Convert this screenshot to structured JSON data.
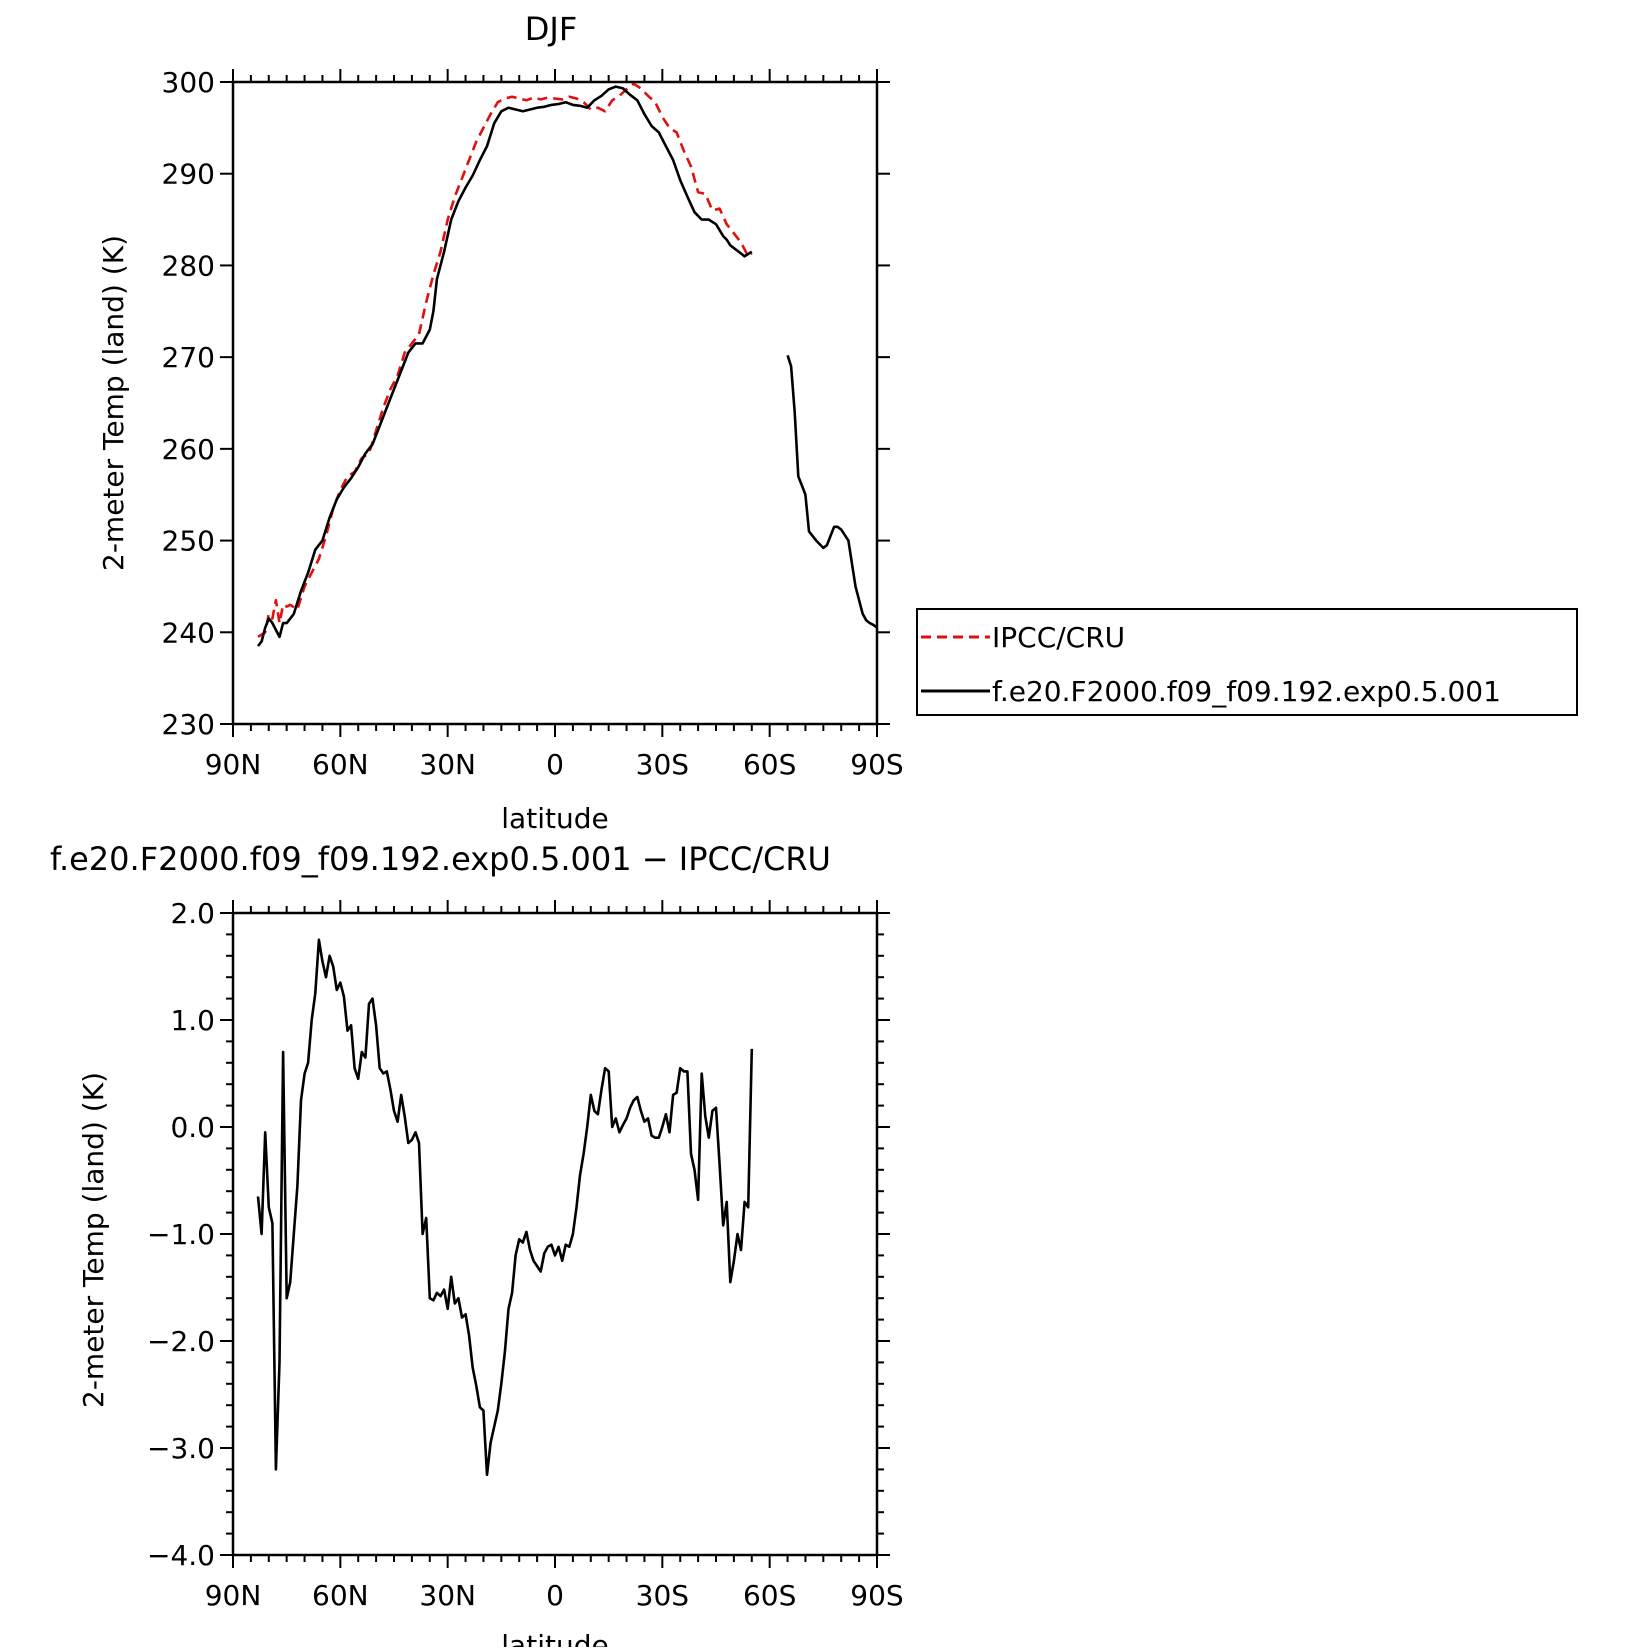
{
  "chart_data": [
    {
      "type": "line",
      "title": "DJF",
      "xlabel": "latitude",
      "ylabel": "2-meter Temp (land) (K)",
      "xlim": [
        -90,
        90
      ],
      "ylim": [
        230,
        300
      ],
      "x_ticks": [
        -90,
        -60,
        -30,
        0,
        30,
        60,
        90
      ],
      "x_tick_labels": [
        "90N",
        "60N",
        "30N",
        "0",
        "30S",
        "60S",
        "90S"
      ],
      "y_ticks": [
        230,
        240,
        250,
        260,
        270,
        280,
        290,
        300
      ],
      "y_tick_labels": [
        "230",
        "240",
        "250",
        "260",
        "270",
        "280",
        "290",
        "300"
      ],
      "legend_position": "right",
      "series": [
        {
          "name": "IPCC/CRU",
          "color": "#e01010",
          "dash": "dashed",
          "x": [
            -83,
            -81,
            -80,
            -79,
            -78,
            -77,
            -76,
            -75,
            -74,
            -72,
            -70,
            -68,
            -66,
            -64,
            -62,
            -60,
            -58,
            -56,
            -54,
            -52,
            -50,
            -48,
            -46,
            -44,
            -42,
            -40,
            -38,
            -36,
            -34,
            -32,
            -30,
            -28,
            -26,
            -24,
            -22,
            -20,
            -18,
            -16,
            -14,
            -12,
            -10,
            -8,
            -6,
            -4,
            -2,
            0,
            2,
            4,
            6,
            8,
            10,
            12,
            14,
            16,
            18,
            20,
            22,
            24,
            26,
            28,
            30,
            32,
            34,
            36,
            38,
            40,
            42,
            44,
            46,
            48,
            50,
            52,
            54,
            55
          ],
          "y": [
            239.5,
            240,
            242,
            241.5,
            243.5,
            241,
            243,
            242.8,
            243,
            242.5,
            245,
            246.5,
            248,
            250.5,
            253.5,
            255.5,
            257,
            257.5,
            259,
            259.5,
            262,
            264.5,
            266.5,
            268,
            270.5,
            271.5,
            272.5,
            276,
            279,
            281.5,
            285,
            287.5,
            289.5,
            291.5,
            293.5,
            295,
            296.5,
            297.8,
            298.2,
            298.4,
            298.2,
            298,
            298.3,
            298.1,
            298.3,
            298.2,
            298.1,
            298.4,
            298.2,
            297.8,
            297,
            297.2,
            296.8,
            298,
            298.5,
            299.2,
            299.8,
            299.3,
            298.5,
            297.8,
            296.2,
            295,
            294.5,
            292.5,
            290.8,
            288,
            287.8,
            286,
            286.2,
            284.5,
            283.5,
            282.5,
            281,
            281.3
          ]
        },
        {
          "name": "f.e20.F2000.f09_f09.192.exp0.5.001",
          "color": "#000000",
          "dash": "solid",
          "x": [
            -83,
            -82,
            -81,
            -80,
            -79,
            -77,
            -76,
            -75,
            -73,
            -71,
            -69,
            -67,
            -65,
            -63,
            -61,
            -59,
            -57,
            -55,
            -53,
            -51,
            -49,
            -47,
            -45,
            -43,
            -41,
            -39,
            -37,
            -35,
            -34,
            -33,
            -31,
            -29,
            -27,
            -25,
            -23,
            -21,
            -19,
            -17,
            -15,
            -13,
            -11,
            -9,
            -7,
            -5,
            -3,
            -1,
            1,
            3,
            5,
            7,
            9,
            11,
            13,
            15,
            17,
            19,
            21,
            23,
            25,
            27,
            29,
            31,
            33,
            35,
            37,
            39,
            41,
            43,
            45,
            47,
            48,
            49,
            51,
            53,
            55,
            null,
            65,
            66,
            67,
            68,
            69,
            70,
            71,
            73,
            75,
            76,
            77,
            78,
            79,
            80,
            82,
            84,
            86,
            87,
            88,
            89,
            90
          ],
          "y": [
            238.5,
            239,
            240.5,
            241.5,
            241,
            239.5,
            241,
            241,
            242,
            244.5,
            246.5,
            249,
            250,
            252.5,
            254.5,
            255.8,
            256.8,
            258,
            259.5,
            260.5,
            262.5,
            264.5,
            266.5,
            268.5,
            270.5,
            271.5,
            271.5,
            273,
            275,
            278.5,
            281.5,
            285,
            287,
            288.5,
            289.8,
            291.5,
            293,
            295.5,
            296.8,
            297.2,
            297,
            296.8,
            297,
            297.2,
            297.3,
            297.5,
            297.6,
            297.8,
            297.5,
            297.4,
            297.2,
            298,
            298.5,
            299.2,
            299.5,
            299.3,
            298.6,
            298,
            296.5,
            295.2,
            294.5,
            293,
            291.5,
            289.3,
            287.5,
            285.8,
            285,
            285,
            284.5,
            283.2,
            282.8,
            282.2,
            281.6,
            281,
            281.5,
            null,
            270.2,
            269,
            264,
            257,
            256,
            255,
            251,
            250,
            249.2,
            249.5,
            250.5,
            251.5,
            251.5,
            251.2,
            250,
            245,
            242,
            241.3,
            241,
            240.8,
            240.5
          ]
        }
      ]
    },
    {
      "type": "line",
      "title": "f.e20.F2000.f09_f09.192.exp0.5.001 − IPCC/CRU",
      "xlabel": "latitude",
      "ylabel": "2-meter Temp (land) (K)",
      "xlim": [
        -90,
        90
      ],
      "ylim": [
        -4.0,
        2.0
      ],
      "x_ticks": [
        -90,
        -60,
        -30,
        0,
        30,
        60,
        90
      ],
      "x_tick_labels": [
        "90N",
        "60N",
        "30N",
        "0",
        "30S",
        "60S",
        "90S"
      ],
      "y_ticks": [
        -4,
        -3,
        -2,
        -1,
        0,
        1,
        2
      ],
      "y_tick_labels": [
        "−4.0",
        "−3.0",
        "−2.0",
        "−1.0",
        "0.0",
        "1.0",
        "2.0"
      ],
      "series": [
        {
          "color": "#000000",
          "dash": "solid",
          "x": [
            -83,
            -82,
            -81,
            -80,
            -79,
            -78,
            -77,
            -76,
            -75,
            -74,
            -73,
            -72,
            -71,
            -70,
            -69,
            -68,
            -67,
            -66,
            -65,
            -64,
            -63,
            -62,
            -61,
            -60,
            -59,
            -58,
            -57,
            -56,
            -55,
            -54,
            -53,
            -52,
            -51,
            -50,
            -49,
            -48,
            -47,
            -46,
            -45,
            -44,
            -43,
            -42,
            -41,
            -40,
            -39,
            -38,
            -37,
            -36,
            -35,
            -34,
            -33,
            -32,
            -31,
            -30,
            -29,
            -28,
            -27,
            -26,
            -25,
            -24,
            -23,
            -22,
            -21,
            -20,
            -19,
            -18,
            -17,
            -16,
            -15,
            -14,
            -13,
            -12,
            -11,
            -10,
            -9,
            -8,
            -7,
            -6,
            -5,
            -4,
            -3,
            -2,
            -1,
            0,
            1,
            2,
            3,
            4,
            5,
            6,
            7,
            8,
            9,
            10,
            11,
            12,
            13,
            14,
            15,
            16,
            17,
            18,
            19,
            20,
            21,
            22,
            23,
            24,
            25,
            26,
            27,
            28,
            29,
            30,
            31,
            32,
            33,
            34,
            35,
            36,
            37,
            38,
            39,
            40,
            41,
            42,
            43,
            44,
            45,
            46,
            47,
            48,
            49,
            50,
            51,
            52,
            53,
            54,
            55
          ],
          "y": [
            -0.65,
            -1.0,
            -0.05,
            -0.75,
            -0.9,
            -3.2,
            -2.2,
            0.7,
            -1.6,
            -1.45,
            -1.0,
            -0.55,
            0.25,
            0.5,
            0.6,
            1.0,
            1.25,
            1.75,
            1.55,
            1.4,
            1.6,
            1.5,
            1.28,
            1.35,
            1.22,
            0.9,
            0.95,
            0.55,
            0.45,
            0.7,
            0.65,
            1.15,
            1.2,
            0.95,
            0.55,
            0.5,
            0.52,
            0.35,
            0.15,
            0.05,
            0.3,
            0.1,
            -0.15,
            -0.12,
            -0.05,
            -0.15,
            -1.0,
            -0.85,
            -1.6,
            -1.62,
            -1.55,
            -1.58,
            -1.52,
            -1.7,
            -1.4,
            -1.65,
            -1.6,
            -1.78,
            -1.75,
            -1.95,
            -2.25,
            -2.42,
            -2.62,
            -2.65,
            -3.25,
            -2.95,
            -2.8,
            -2.65,
            -2.4,
            -2.1,
            -1.7,
            -1.55,
            -1.2,
            -1.05,
            -1.08,
            -0.98,
            -1.15,
            -1.25,
            -1.3,
            -1.35,
            -1.18,
            -1.12,
            -1.1,
            -1.2,
            -1.12,
            -1.25,
            -1.1,
            -1.12,
            -1.0,
            -0.75,
            -0.45,
            -0.25,
            0.0,
            0.3,
            0.15,
            0.12,
            0.35,
            0.55,
            0.52,
            0.0,
            0.08,
            -0.05,
            0.02,
            0.08,
            0.18,
            0.25,
            0.28,
            0.15,
            0.05,
            0.08,
            -0.08,
            -0.1,
            -0.1,
            0.0,
            0.12,
            -0.05,
            0.3,
            0.32,
            0.55,
            0.52,
            0.52,
            -0.25,
            -0.4,
            -0.68,
            0.5,
            0.1,
            -0.1,
            0.15,
            0.18,
            -0.35,
            -0.92,
            -0.7,
            -1.45,
            -1.25,
            -1.0,
            -1.15,
            -0.7,
            -0.75,
            0.73
          ]
        }
      ]
    }
  ]
}
